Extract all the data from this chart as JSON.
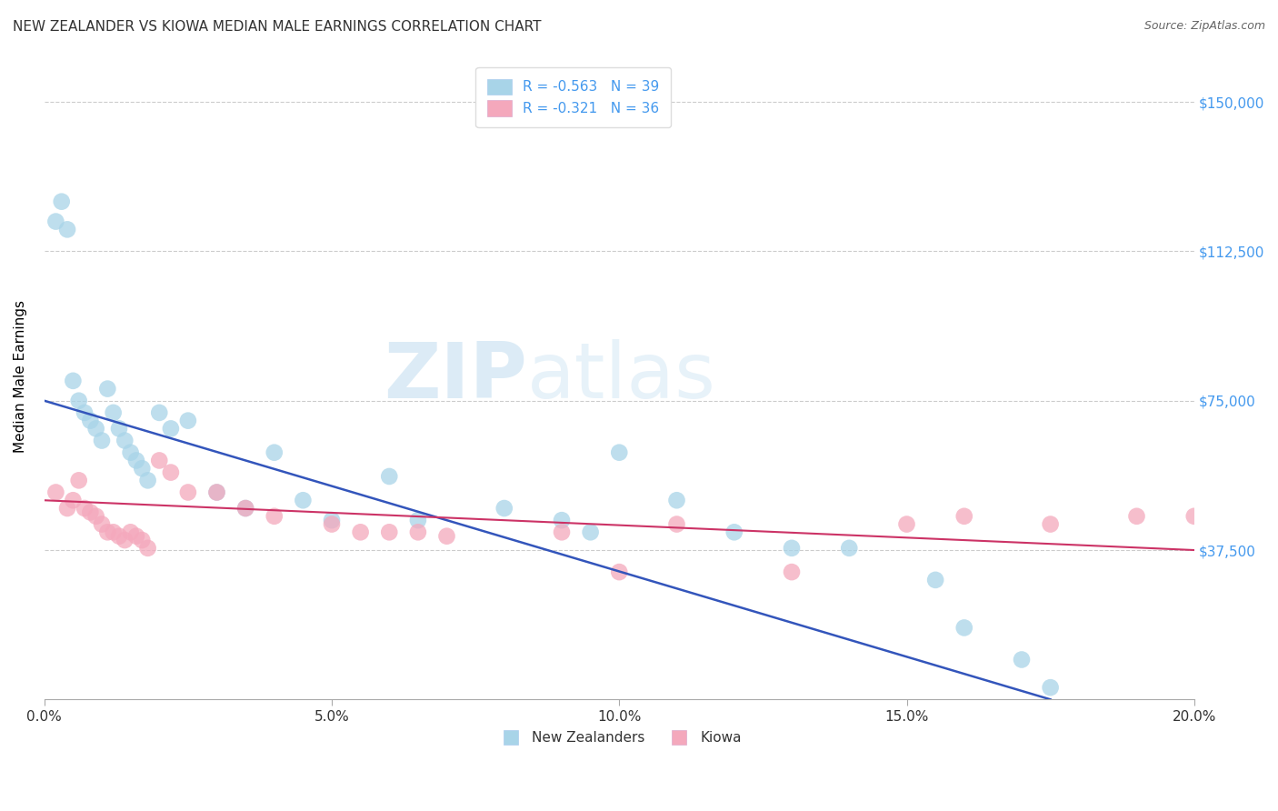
{
  "title": "NEW ZEALANDER VS KIOWA MEDIAN MALE EARNINGS CORRELATION CHART",
  "source": "Source: ZipAtlas.com",
  "ylabel": "Median Male Earnings",
  "xlim": [
    0.0,
    0.2
  ],
  "ylim": [
    0,
    162000
  ],
  "ytick_labels": [
    "$37,500",
    "$75,000",
    "$112,500",
    "$150,000"
  ],
  "ytick_values": [
    37500,
    75000,
    112500,
    150000
  ],
  "xtick_labels": [
    "0.0%",
    "5.0%",
    "10.0%",
    "15.0%",
    "20.0%"
  ],
  "xtick_values": [
    0.0,
    0.05,
    0.1,
    0.15,
    0.2
  ],
  "blue_color": "#a8d4e8",
  "pink_color": "#f4a8bc",
  "blue_line_color": "#3355bb",
  "pink_line_color": "#cc3366",
  "blue_r": -0.563,
  "blue_n": 39,
  "pink_r": -0.321,
  "pink_n": 36,
  "legend_label_blue": "New Zealanders",
  "legend_label_pink": "Kiowa",
  "watermark_zip": "ZIP",
  "watermark_atlas": "atlas",
  "blue_line_x0": 0.0,
  "blue_line_y0": 75000,
  "blue_line_x1": 0.175,
  "blue_line_y1": 0,
  "pink_line_x0": 0.0,
  "pink_line_y0": 50000,
  "pink_line_x1": 0.2,
  "pink_line_y1": 37500,
  "blue_x": [
    0.002,
    0.003,
    0.004,
    0.005,
    0.006,
    0.007,
    0.008,
    0.009,
    0.01,
    0.011,
    0.012,
    0.013,
    0.014,
    0.015,
    0.016,
    0.017,
    0.018,
    0.02,
    0.022,
    0.025,
    0.03,
    0.035,
    0.04,
    0.045,
    0.05,
    0.06,
    0.065,
    0.08,
    0.09,
    0.095,
    0.1,
    0.11,
    0.12,
    0.13,
    0.14,
    0.155,
    0.16,
    0.17,
    0.175
  ],
  "blue_y": [
    120000,
    125000,
    118000,
    80000,
    75000,
    72000,
    70000,
    68000,
    65000,
    78000,
    72000,
    68000,
    65000,
    62000,
    60000,
    58000,
    55000,
    72000,
    68000,
    70000,
    52000,
    48000,
    62000,
    50000,
    45000,
    56000,
    45000,
    48000,
    45000,
    42000,
    62000,
    50000,
    42000,
    38000,
    38000,
    30000,
    18000,
    10000,
    3000
  ],
  "pink_x": [
    0.002,
    0.004,
    0.005,
    0.006,
    0.007,
    0.008,
    0.009,
    0.01,
    0.011,
    0.012,
    0.013,
    0.014,
    0.015,
    0.016,
    0.017,
    0.018,
    0.02,
    0.022,
    0.025,
    0.03,
    0.035,
    0.04,
    0.05,
    0.055,
    0.06,
    0.065,
    0.07,
    0.09,
    0.1,
    0.11,
    0.13,
    0.15,
    0.16,
    0.175,
    0.19,
    0.2
  ],
  "pink_y": [
    52000,
    48000,
    50000,
    55000,
    48000,
    47000,
    46000,
    44000,
    42000,
    42000,
    41000,
    40000,
    42000,
    41000,
    40000,
    38000,
    60000,
    57000,
    52000,
    52000,
    48000,
    46000,
    44000,
    42000,
    42000,
    42000,
    41000,
    42000,
    32000,
    44000,
    32000,
    44000,
    46000,
    44000,
    46000,
    46000
  ]
}
